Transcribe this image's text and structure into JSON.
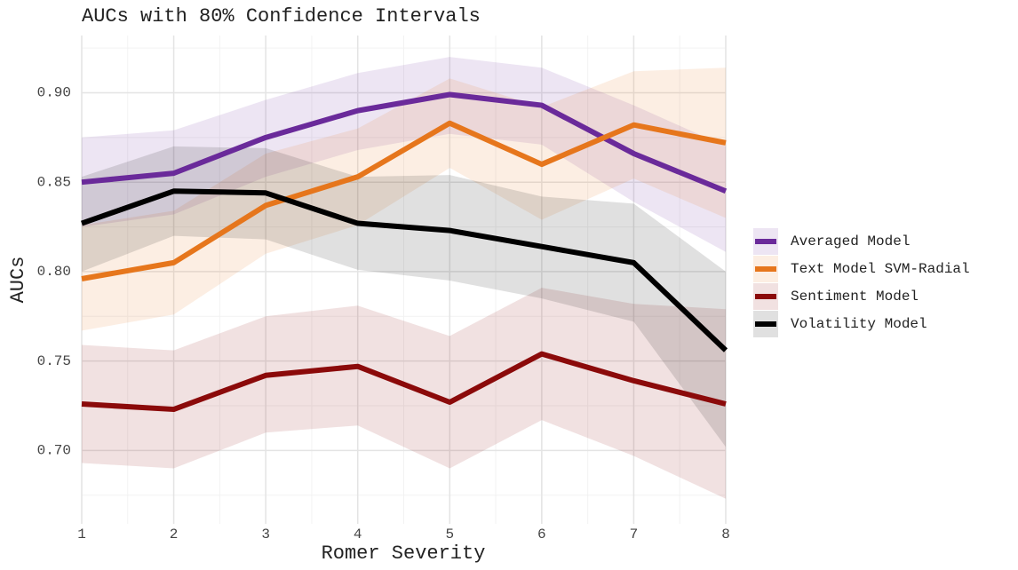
{
  "chart_data": {
    "type": "line",
    "title": "AUCs with 80% Confidence Intervals",
    "x_label": "Romer Severity",
    "y_label": "AUCs",
    "x": [
      1,
      2,
      3,
      4,
      5,
      6,
      7,
      8
    ],
    "xlim": [
      1,
      8
    ],
    "xticks": [
      1,
      2,
      3,
      4,
      5,
      6,
      7,
      8
    ],
    "ylim": [
      0.659,
      0.932
    ],
    "yticks": [
      {
        "value": 0.7,
        "label": "0.70"
      },
      {
        "value": 0.75,
        "label": "0.75"
      },
      {
        "value": 0.8,
        "label": "0.80"
      },
      {
        "value": 0.85,
        "label": "0.85"
      },
      {
        "value": 0.9,
        "label": "0.90"
      }
    ],
    "grid": true,
    "legend": "right",
    "series": [
      {
        "name": "Averaged Model",
        "color": "#6a2a9a",
        "values": [
          0.85,
          0.855,
          0.875,
          0.89,
          0.899,
          0.893,
          0.866,
          0.845
        ],
        "lower": [
          0.825,
          0.832,
          0.853,
          0.868,
          0.877,
          0.871,
          0.839,
          0.811
        ],
        "upper": [
          0.875,
          0.879,
          0.896,
          0.911,
          0.92,
          0.914,
          0.893,
          0.87
        ]
      },
      {
        "name": "Text Model SVM-Radial",
        "color": "#e6761c",
        "values": [
          0.796,
          0.805,
          0.837,
          0.853,
          0.883,
          0.86,
          0.882,
          0.872
        ],
        "lower": [
          0.767,
          0.776,
          0.81,
          0.826,
          0.858,
          0.829,
          0.852,
          0.83
        ],
        "upper": [
          0.826,
          0.834,
          0.866,
          0.88,
          0.908,
          0.892,
          0.912,
          0.914
        ]
      },
      {
        "name": "Sentiment Model",
        "color": "#8b0a0a",
        "values": [
          0.726,
          0.723,
          0.742,
          0.747,
          0.727,
          0.754,
          0.739,
          0.726
        ],
        "lower": [
          0.693,
          0.69,
          0.71,
          0.714,
          0.69,
          0.717,
          0.697,
          0.673
        ],
        "upper": [
          0.759,
          0.756,
          0.775,
          0.781,
          0.764,
          0.791,
          0.782,
          0.779
        ]
      },
      {
        "name": "Volatility Model",
        "color": "#000000",
        "values": [
          0.827,
          0.845,
          0.844,
          0.827,
          0.823,
          0.814,
          0.805,
          0.756
        ],
        "lower": [
          0.8,
          0.82,
          0.818,
          0.801,
          0.795,
          0.785,
          0.772,
          0.702
        ],
        "upper": [
          0.853,
          0.87,
          0.869,
          0.853,
          0.854,
          0.842,
          0.838,
          0.8
        ]
      }
    ]
  }
}
